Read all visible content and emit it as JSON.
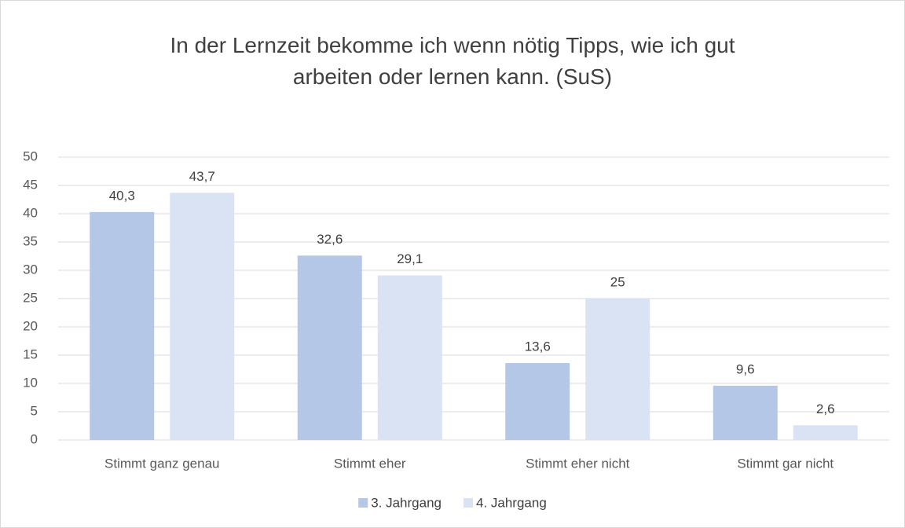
{
  "chart_data": {
    "type": "bar",
    "title": "In der Lernzeit bekomme ich wenn nötig Tipps, wie ich gut arbeiten oder lernen kann. (SuS)",
    "categories": [
      "Stimmt ganz genau",
      "Stimmt eher",
      "Stimmt eher nicht",
      "Stimmt gar nicht"
    ],
    "series": [
      {
        "name": "3. Jahrgang",
        "color": "#b4c7e7",
        "values": [
          40.3,
          32.6,
          13.6,
          9.6
        ],
        "value_labels": [
          "40,3",
          "32,6",
          "13,6",
          "9,6"
        ]
      },
      {
        "name": "4. Jahrgang",
        "color": "#dae3f3",
        "values": [
          43.7,
          29.1,
          25,
          2.6
        ],
        "value_labels": [
          "43,7",
          "29,1",
          "25",
          "2,6"
        ]
      }
    ],
    "ylim": [
      0,
      50
    ],
    "yticks": [
      0,
      5,
      10,
      15,
      20,
      25,
      30,
      35,
      40,
      45,
      50
    ],
    "grid": true,
    "legend": "bottom"
  }
}
